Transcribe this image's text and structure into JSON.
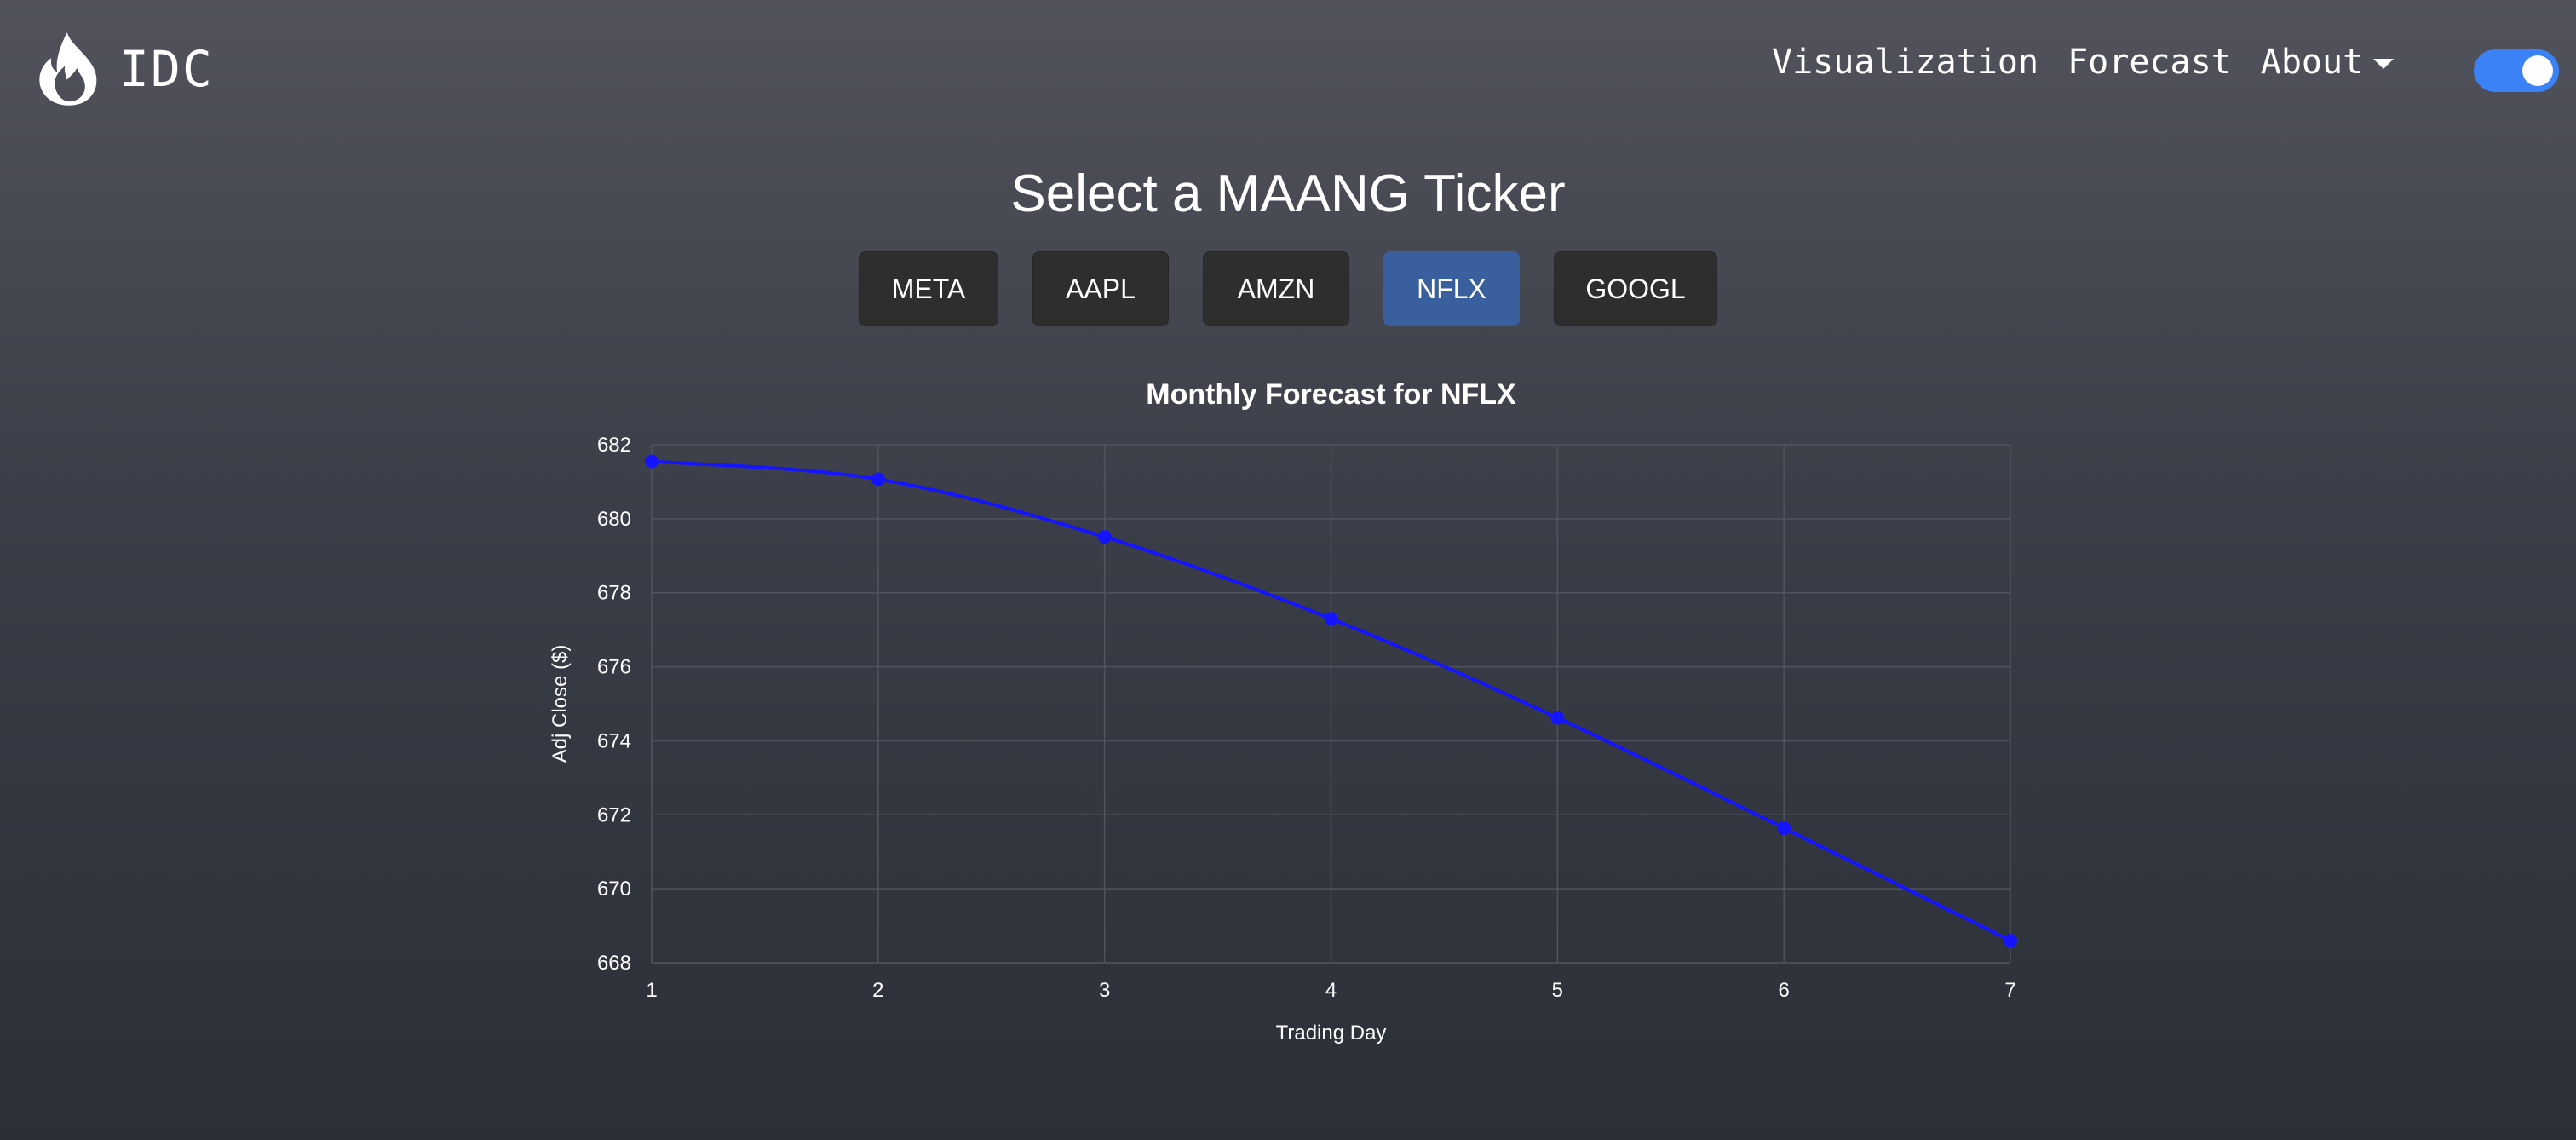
{
  "navbar": {
    "brand": "IDC",
    "brand_icon": "flame-icon",
    "links": [
      "Visualization",
      "Forecast",
      "About"
    ],
    "theme_toggle_on": true,
    "toggle_color": "#3b82f6"
  },
  "page": {
    "heading": "Select a MAANG Ticker"
  },
  "tickers": [
    {
      "label": "META",
      "active": false
    },
    {
      "label": "AAPL",
      "active": false
    },
    {
      "label": "AMZN",
      "active": false
    },
    {
      "label": "NFLX",
      "active": true
    },
    {
      "label": "GOOGL",
      "active": false
    }
  ],
  "colors": {
    "button_bg": "#2e2e2e",
    "button_active_bg": "#3a5f9e",
    "series": "#1414ff",
    "grid": "#50545e"
  },
  "chart_data": {
    "type": "line",
    "title": "Monthly Forecast for NFLX",
    "xlabel": "Trading Day",
    "ylabel": "Adj Close ($)",
    "x": [
      1,
      2,
      3,
      4,
      5,
      6,
      7
    ],
    "y": [
      681.55,
      681.07,
      679.51,
      677.3,
      674.62,
      671.64,
      668.6
    ],
    "x_ticks": [
      "1",
      "2",
      "3",
      "4",
      "5",
      "6",
      "7"
    ],
    "y_ticks": [
      "682",
      "680",
      "678",
      "676",
      "674",
      "672",
      "670",
      "668"
    ],
    "xlim": [
      1,
      7
    ],
    "ylim": [
      668,
      682
    ],
    "grid": true,
    "legend": "none"
  }
}
